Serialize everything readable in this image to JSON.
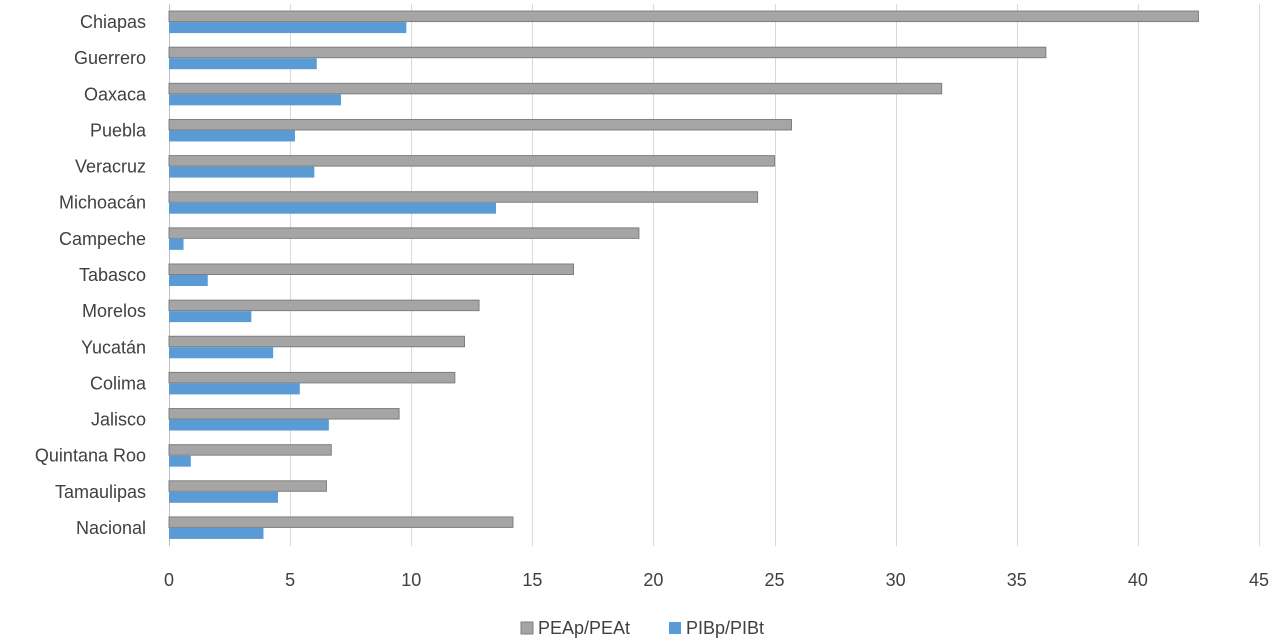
{
  "chart_data": {
    "type": "bar",
    "orientation": "horizontal",
    "categories": [
      "Chiapas",
      "Guerrero",
      "Oaxaca",
      "Puebla",
      "Veracruz",
      "Michoacán",
      "Campeche",
      "Tabasco",
      "Morelos",
      "Yucatán",
      "Colima",
      "Jalisco",
      "Quintana Roo",
      "Tamaulipas",
      "Nacional"
    ],
    "series": [
      {
        "name": "PEAp/PEAt",
        "color": "#a5a5a5",
        "values": [
          42.5,
          36.2,
          31.9,
          25.7,
          25.0,
          24.3,
          19.4,
          16.7,
          12.8,
          12.2,
          11.8,
          9.5,
          6.7,
          6.5,
          14.2
        ]
      },
      {
        "name": "PIBp/PIBt",
        "color": "#5b9bd5",
        "values": [
          9.8,
          6.1,
          7.1,
          5.2,
          6.0,
          13.5,
          0.6,
          1.6,
          3.4,
          4.3,
          5.4,
          6.6,
          0.9,
          4.5,
          3.9
        ]
      }
    ],
    "xlim": [
      0,
      45
    ],
    "xticks": [
      0,
      5,
      10,
      15,
      20,
      25,
      30,
      35,
      40,
      45
    ],
    "grid": true,
    "legend_position": "bottom"
  }
}
